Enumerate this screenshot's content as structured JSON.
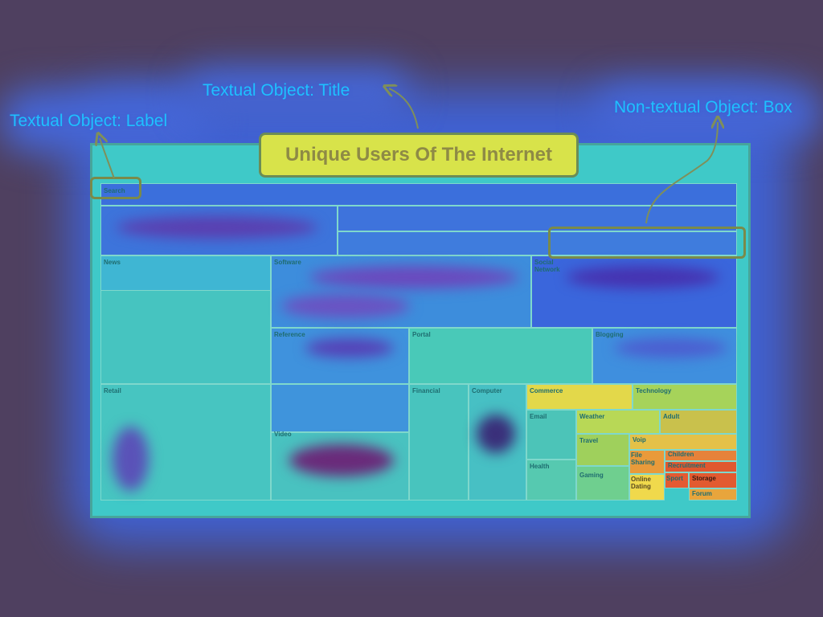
{
  "annotations": {
    "label_annotation": "Textual Object: Label",
    "title_annotation": "Textual Object: Title",
    "box_annotation": "Non-textual Object: Box"
  },
  "figure_title": "Unique Users Of The Internet",
  "search_label": "Search",
  "treemap_labels": {
    "news": "News",
    "software": "Software",
    "social_network": "Social Network",
    "reference": "Reference",
    "portal": "Portal",
    "blogging": "Blogging",
    "retail": "Retail",
    "video": "Video",
    "financial": "Financial",
    "computer": "Computer",
    "commerce": "Commerce",
    "technology": "Technology",
    "email": "Email",
    "weather": "Weather",
    "adult": "Adult",
    "travel": "Travel",
    "voip": "Voip",
    "health": "Health",
    "gaming": "Gaming",
    "file_sharing": "File Sharing",
    "children": "Children",
    "recruitment": "Recruitment",
    "online_dating": "Online Dating",
    "sport": "Sport",
    "storage": "Storage",
    "forum": "Forum"
  },
  "colors": {
    "background": "#4f4060",
    "heat_low": "#3f63d8",
    "heat_mid": "#3fc9c8",
    "heat_high": "#e8d84a",
    "heat_peak": "#e2472c",
    "annotation_text": "#1ec1ff"
  }
}
